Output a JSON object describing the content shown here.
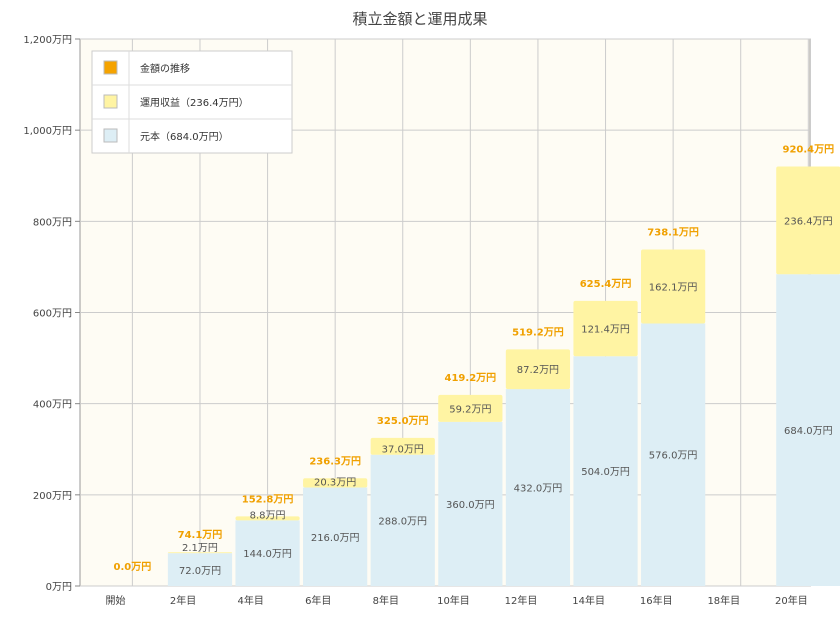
{
  "colors": {
    "principal": "#ddeef5",
    "return": "#fff4a3",
    "total_marker": "#f5a300",
    "total_label": "#f0a000",
    "plot_bg": "#fefcf4",
    "grid": "#cccccc"
  },
  "chart_data": {
    "type": "bar",
    "stacked": true,
    "title": "積立金額と運用成果",
    "categories": [
      "開始",
      "",
      "2年目",
      "",
      "4年目",
      "",
      "6年目",
      "",
      "8年目",
      "",
      "10年目",
      "",
      "12年目",
      "",
      "14年目",
      "",
      "16年目",
      "",
      "18年目",
      "",
      "20年目"
    ],
    "x_tick_labels": [
      "開始",
      "2年目",
      "4年目",
      "6年目",
      "8年目",
      "10年目",
      "12年目",
      "14年目",
      "16年目",
      "18年目",
      "20年目"
    ],
    "ylim": [
      0,
      1200
    ],
    "y_ticks": [
      0,
      200,
      400,
      600,
      800,
      1000,
      1200
    ],
    "y_tick_labels": [
      "0万円",
      "200万円",
      "400万円",
      "600万円",
      "800万円",
      "1,000万円",
      "1,200万円"
    ],
    "grid": true,
    "legend_position": "top-left",
    "bars": [
      {
        "category": "開始",
        "principal": 0,
        "return": 0,
        "total": 0.0,
        "principal_label": "",
        "return_label": "",
        "total_label": "0.0万円"
      },
      {
        "category": "2年目",
        "principal": 72.0,
        "return": 2.1,
        "total": 74.1,
        "principal_label": "72.0万円",
        "return_label": "2.1万円",
        "total_label": "74.1万円"
      },
      {
        "category": "4年目",
        "principal": 144.0,
        "return": 8.8,
        "total": 152.8,
        "principal_label": "144.0万円",
        "return_label": "8.8万円",
        "total_label": "152.8万円"
      },
      {
        "category": "6年目",
        "principal": 216.0,
        "return": 20.3,
        "total": 236.3,
        "principal_label": "216.0万円",
        "return_label": "20.3万円",
        "total_label": "236.3万円"
      },
      {
        "category": "8年目",
        "principal": 288.0,
        "return": 37.0,
        "total": 325.0,
        "principal_label": "288.0万円",
        "return_label": "37.0万円",
        "total_label": "325.0万円"
      },
      {
        "category": "10年目",
        "principal": 360.0,
        "return": 59.2,
        "total": 419.2,
        "principal_label": "360.0万円",
        "return_label": "59.2万円",
        "total_label": "419.2万円"
      },
      {
        "category": "12年目",
        "principal": 432.0,
        "return": 87.2,
        "total": 519.2,
        "principal_label": "432.0万円",
        "return_label": "87.2万円",
        "total_label": "519.2万円"
      },
      {
        "category": "14年目",
        "principal": 504.0,
        "return": 121.4,
        "total": 625.4,
        "principal_label": "504.0万円",
        "return_label": "121.4万円",
        "total_label": "625.4万円"
      },
      {
        "category": "16年目",
        "principal": 576.0,
        "return": 162.1,
        "total": 738.1,
        "principal_label": "576.0万円",
        "return_label": "162.1万円",
        "total_label": "738.1万円"
      },
      {
        "category": "20年目",
        "principal": 684.0,
        "return": 236.4,
        "total": 920.4,
        "principal_label": "684.0万円",
        "return_label": "236.4万円",
        "total_label": "920.4万円"
      }
    ],
    "legend": [
      {
        "label": "金額の推移",
        "color": "#f5a300"
      },
      {
        "label": "運用収益（236.4万円）",
        "color": "#fff4a3"
      },
      {
        "label": "元本（684.0万円）",
        "color": "#ddeef5"
      }
    ]
  }
}
